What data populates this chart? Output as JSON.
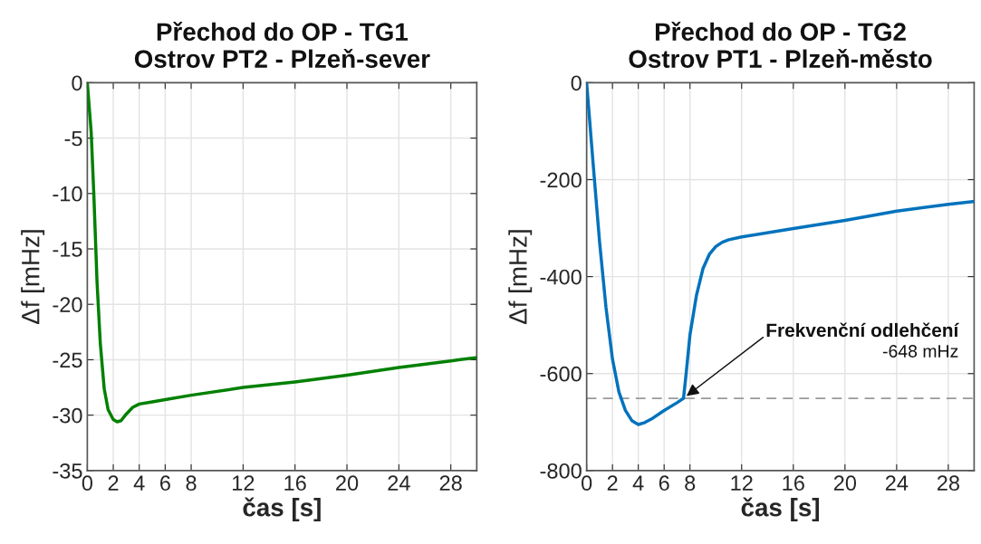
{
  "chart_data": [
    {
      "type": "line",
      "title": "Přechod do OP - TG1\nOstrov PT2 - Plzeň-sever",
      "xlabel": "čas [s]",
      "ylabel": "Δf [mHz]",
      "x": [
        0,
        0.3,
        0.5,
        0.75,
        1.0,
        1.3,
        1.6,
        2.0,
        2.3,
        2.6,
        3.0,
        3.5,
        4,
        5,
        6,
        8,
        12,
        16,
        20,
        24,
        28,
        30
      ],
      "series": [
        {
          "color": "#008000",
          "values": [
            0,
            -4.5,
            -10,
            -18,
            -23.5,
            -27.6,
            -29.5,
            -30.4,
            -30.6,
            -30.5,
            -29.9,
            -29.3,
            -29.0,
            -28.8,
            -28.6,
            -28.2,
            -27.5,
            -27.0,
            -26.4,
            -25.7,
            -25.1,
            -24.8
          ]
        }
      ],
      "xlim": [
        0,
        30
      ],
      "xticks": [
        0,
        2,
        4,
        6,
        8,
        12,
        16,
        20,
        24,
        28
      ],
      "ylim": [
        -35,
        0
      ],
      "yticks": [
        -35,
        -30,
        -25,
        -20,
        -15,
        -10,
        -5,
        0
      ],
      "grid": true,
      "legend": false,
      "marker": "none",
      "line_style": "solid"
    },
    {
      "type": "line",
      "title": "Přechod do OP - TG2\nOstrov PT1 - Plzeň-město",
      "xlabel": "čas [s]",
      "ylabel": "Δf [mHz]",
      "x": [
        0,
        0.5,
        1,
        1.5,
        2,
        2.5,
        3,
        3.5,
        4,
        4.5,
        5,
        6,
        7,
        7.5,
        7.7,
        8,
        8.5,
        9,
        9.5,
        10,
        10.5,
        11,
        12,
        16,
        20,
        24,
        28,
        30
      ],
      "series": [
        {
          "color": "#0072bd",
          "values": [
            0,
            -166,
            -328,
            -464,
            -570,
            -638,
            -676,
            -697,
            -705,
            -701,
            -694,
            -676,
            -660,
            -651,
            -601,
            -520,
            -439,
            -384,
            -354,
            -338,
            -329,
            -324,
            -318,
            -301,
            -284,
            -265,
            -251,
            -245
          ]
        }
      ],
      "xlim": [
        0,
        30
      ],
      "xticks": [
        0,
        2,
        4,
        6,
        8,
        12,
        16,
        20,
        24,
        28
      ],
      "ylim": [
        -800,
        0
      ],
      "yticks": [
        -800,
        -600,
        -400,
        -200,
        0
      ],
      "grid": true,
      "legend": false,
      "marker": "none",
      "line_style": "solid",
      "ref_lines": [
        {
          "axis": "y",
          "value": -651,
          "color": "#999999",
          "line_style": "dashed"
        }
      ],
      "annotations": [
        {
          "text": "Frekvenční odlehčení",
          "x": 7.5,
          "y": -651
        },
        "-648 mHz"
      ]
    }
  ]
}
